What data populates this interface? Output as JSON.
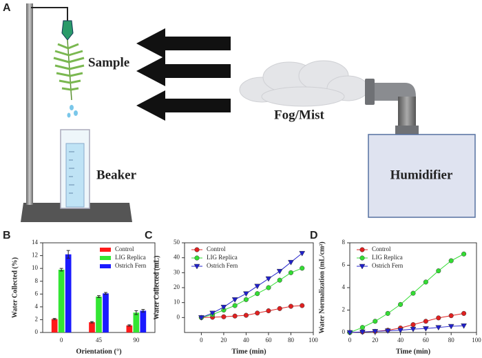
{
  "diagram": {
    "panel": "A",
    "sample": "Sample",
    "fog": "Fog/Mist",
    "beaker": "Beaker",
    "humidifier": "Humidifier"
  },
  "chart_data": [
    {
      "type": "bar",
      "panel": "B",
      "x_label": "Orientation (°)",
      "y_label": "Water Collected (%)",
      "categories": [
        "0",
        "45",
        "90"
      ],
      "ylim": [
        0,
        14
      ],
      "yticks": [
        0,
        2,
        4,
        6,
        8,
        10,
        12,
        14
      ],
      "legend": "top-right",
      "series": [
        {
          "name": "Control",
          "color": "#ff1a1a",
          "values": [
            2.1,
            1.6,
            1.1
          ],
          "errors": [
            0.1,
            0.1,
            0.1
          ]
        },
        {
          "name": "LIG Replica",
          "color": "#33e633",
          "values": [
            9.8,
            5.6,
            3.1
          ],
          "errors": [
            0.2,
            0.15,
            0.3
          ]
        },
        {
          "name": "Ostrich Fern",
          "color": "#1a1aff",
          "values": [
            12.2,
            6.1,
            3.4
          ],
          "errors": [
            0.6,
            0.15,
            0.2
          ]
        }
      ]
    },
    {
      "type": "line",
      "panel": "C",
      "x_label": "Time (min)",
      "y_label": "Water Collected (mL)",
      "xlim": [
        -15,
        100
      ],
      "xticks": [
        0,
        20,
        40,
        60,
        80,
        100
      ],
      "ylim": [
        -10,
        50
      ],
      "yticks": [
        0,
        10,
        20,
        30,
        40,
        50
      ],
      "legend": "top-left",
      "x": [
        0,
        10,
        20,
        30,
        40,
        50,
        60,
        70,
        80,
        90
      ],
      "series": [
        {
          "name": "Control",
          "color": "#e02020",
          "marker": "circle",
          "values": [
            0,
            0.2,
            0.5,
            1,
            1.5,
            3,
            4.5,
            6,
            7.5,
            8
          ]
        },
        {
          "name": "LIG Replica",
          "color": "#33dd33",
          "marker": "circle",
          "values": [
            0,
            2,
            5,
            8,
            12,
            16,
            20,
            25,
            30,
            33
          ]
        },
        {
          "name": "Ostrich Fern",
          "color": "#2020cc",
          "marker": "triangle-down",
          "values": [
            0,
            3,
            7,
            12,
            16,
            21,
            26,
            31,
            37,
            43
          ]
        }
      ]
    },
    {
      "type": "line",
      "panel": "D",
      "x_label": "Time (min)",
      "y_label": "Water Normalization (mL/cm²)",
      "xlim": [
        0,
        100
      ],
      "xticks": [
        0,
        20,
        40,
        60,
        80,
        100
      ],
      "ylim": [
        0,
        8
      ],
      "yticks": [
        0,
        2,
        4,
        6,
        8
      ],
      "legend": "top-left",
      "x": [
        0,
        10,
        20,
        30,
        40,
        50,
        60,
        70,
        80,
        90
      ],
      "series": [
        {
          "name": "Control",
          "color": "#e02020",
          "marker": "circle",
          "values": [
            0,
            0.05,
            0.1,
            0.2,
            0.4,
            0.7,
            1.0,
            1.3,
            1.5,
            1.7
          ]
        },
        {
          "name": "LIG Replica",
          "color": "#33dd33",
          "marker": "circle",
          "values": [
            0,
            0.45,
            1.0,
            1.7,
            2.5,
            3.5,
            4.5,
            5.5,
            6.4,
            7.0
          ]
        },
        {
          "name": "Ostrich Fern",
          "color": "#2020cc",
          "marker": "triangle-down",
          "values": [
            0,
            0.05,
            0.1,
            0.15,
            0.2,
            0.3,
            0.35,
            0.45,
            0.55,
            0.6
          ]
        }
      ]
    }
  ]
}
